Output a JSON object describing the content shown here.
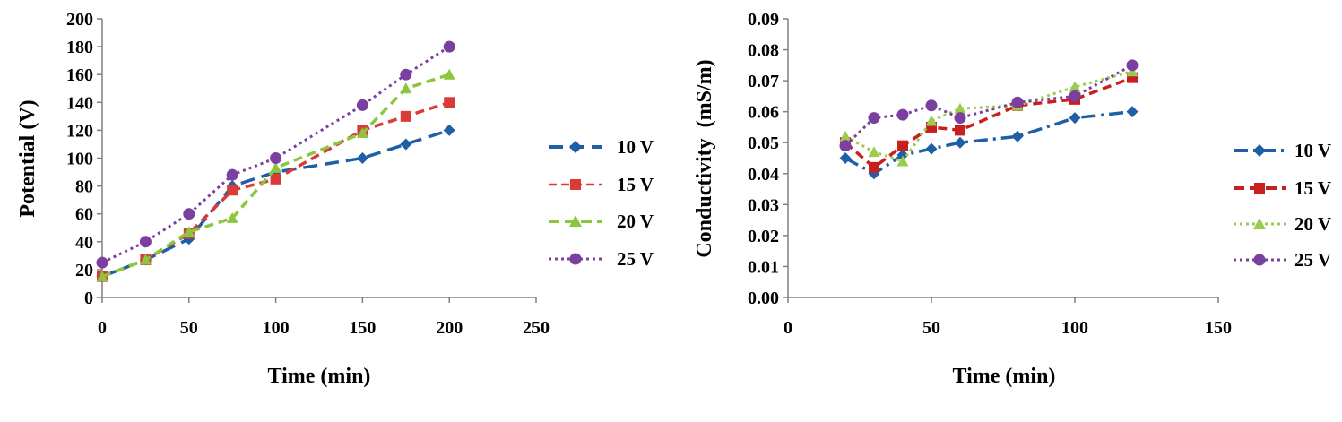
{
  "chart_data": [
    {
      "type": "line",
      "title": "",
      "xlabel": "Time (min)",
      "ylabel": "Potential (V)",
      "xlim": [
        0,
        250
      ],
      "ylim": [
        0,
        200
      ],
      "xticks": [
        0,
        50,
        100,
        150,
        200,
        250
      ],
      "yticks": [
        0,
        20,
        40,
        60,
        80,
        100,
        120,
        140,
        160,
        180,
        200
      ],
      "tick_decimals": 0,
      "grid": false,
      "legend_position": "right",
      "series": [
        {
          "name": "10 V",
          "color": "#1F5FA8",
          "marker": "diamond",
          "dash": "long-dash",
          "x": [
            0,
            25,
            50,
            75,
            100,
            150,
            175,
            200
          ],
          "y": [
            15,
            27,
            42,
            80,
            90,
            100,
            110,
            120
          ]
        },
        {
          "name": "15 V",
          "color": "#D93B36",
          "marker": "square",
          "dash": "dash",
          "x": [
            0,
            25,
            50,
            75,
            100,
            150,
            175,
            200
          ],
          "y": [
            15,
            27,
            46,
            77,
            85,
            120,
            130,
            140
          ]
        },
        {
          "name": "20 V",
          "color": "#8CC63F",
          "marker": "triangle",
          "dash": "dash",
          "x": [
            0,
            25,
            50,
            75,
            100,
            150,
            175,
            200
          ],
          "y": [
            15,
            27,
            47,
            57,
            93,
            118,
            150,
            160
          ]
        },
        {
          "name": "25 V",
          "color": "#7B3FA0",
          "marker": "circle",
          "dash": "dot",
          "x": [
            0,
            25,
            50,
            75,
            100,
            150,
            175,
            200
          ],
          "y": [
            25,
            40,
            60,
            88,
            100,
            138,
            160,
            180
          ]
        }
      ]
    },
    {
      "type": "line",
      "title": "",
      "xlabel": "Time (min)",
      "ylabel": "Conductivity  (mS/m)",
      "xlim": [
        0,
        150
      ],
      "ylim": [
        0,
        0.09
      ],
      "xticks": [
        0,
        50,
        100,
        150
      ],
      "yticks": [
        0,
        0.01,
        0.02,
        0.03,
        0.04,
        0.05,
        0.06,
        0.07,
        0.08,
        0.09
      ],
      "tick_decimals": 2,
      "grid": false,
      "legend_position": "right",
      "series": [
        {
          "name": "10 V",
          "color": "#1F5FA8",
          "marker": "diamond",
          "dash": "dash-dot",
          "x": [
            20,
            30,
            40,
            50,
            60,
            80,
            100,
            120
          ],
          "y": [
            0.045,
            0.04,
            0.046,
            0.048,
            0.05,
            0.052,
            0.058,
            0.06
          ]
        },
        {
          "name": "15 V",
          "color": "#C8201E",
          "marker": "square",
          "dash": "dash",
          "x": [
            20,
            30,
            40,
            50,
            60,
            80,
            100,
            120
          ],
          "y": [
            0.05,
            0.042,
            0.049,
            0.055,
            0.054,
            0.062,
            0.064,
            0.071
          ]
        },
        {
          "name": "20 V",
          "color": "#9BCB4F",
          "marker": "triangle",
          "dash": "dot",
          "x": [
            20,
            30,
            40,
            50,
            60,
            80,
            100,
            120
          ],
          "y": [
            0.052,
            0.047,
            0.044,
            0.057,
            0.061,
            0.062,
            0.068,
            0.073
          ]
        },
        {
          "name": "25 V",
          "color": "#7B3FA0",
          "marker": "circle",
          "dash": "dot",
          "x": [
            20,
            30,
            40,
            50,
            60,
            80,
            100,
            120
          ],
          "y": [
            0.049,
            0.058,
            0.059,
            0.062,
            0.058,
            0.063,
            0.065,
            0.075
          ]
        }
      ]
    }
  ]
}
